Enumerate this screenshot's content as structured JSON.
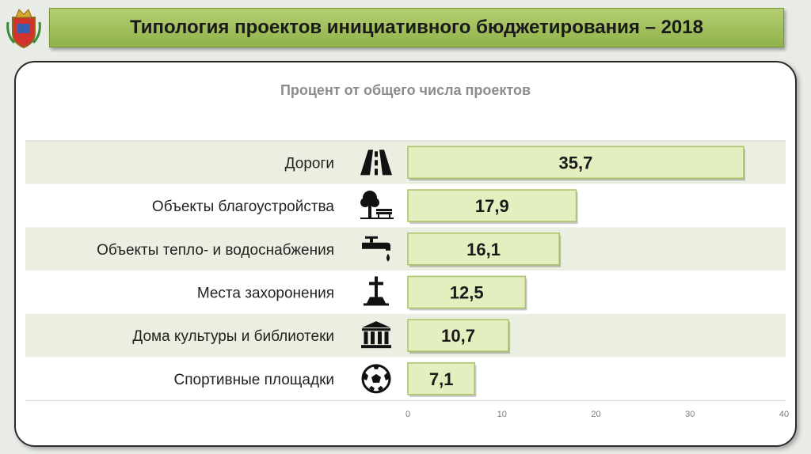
{
  "header": {
    "title": "Типология проектов инициативного бюджетирования – 2018"
  },
  "chart_data": {
    "type": "bar",
    "orientation": "horizontal",
    "title": "Процент от общего числа проектов",
    "categories": [
      "Дороги",
      "Объекты благоустройства",
      "Объекты тепло- и водоснабжения",
      "Места захоронения",
      "Дома культуры и библиотеки",
      "Спортивные площадки"
    ],
    "values": [
      35.7,
      17.9,
      16.1,
      12.5,
      10.7,
      7.1
    ],
    "value_labels": [
      "35,7",
      "17,9",
      "16,1",
      "12,5",
      "10,7",
      "7,1"
    ],
    "icons": [
      "road-icon",
      "tree-bench-icon",
      "faucet-icon",
      "grave-cross-icon",
      "museum-icon",
      "soccer-ball-icon"
    ],
    "xlim": [
      0,
      40
    ],
    "xticks": [
      0,
      10,
      20,
      30,
      40
    ],
    "grid": false,
    "colors": {
      "bar_fill": "#e4efbf",
      "bar_edge": "#a8c266",
      "band": "#eaefe2"
    }
  }
}
